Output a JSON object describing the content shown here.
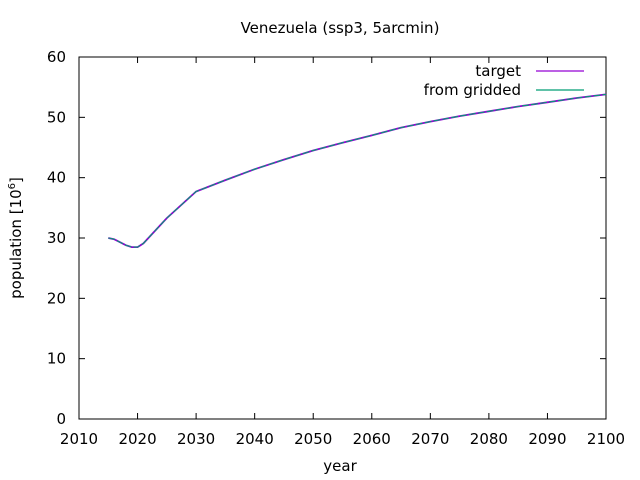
{
  "chart_data": {
    "type": "line",
    "title": "Venezuela (ssp3, 5arcmin)",
    "xlabel": "year",
    "ylabel_main": "population [10",
    "ylabel_exp": "6",
    "ylabel_close": "]",
    "xlim": [
      2010,
      2100
    ],
    "ylim": [
      0,
      60
    ],
    "xticks": [
      2010,
      2020,
      2030,
      2040,
      2050,
      2060,
      2070,
      2080,
      2090,
      2100
    ],
    "yticks": [
      0,
      10,
      20,
      30,
      40,
      50,
      60
    ],
    "grid": false,
    "legend_position": "top-right",
    "series": [
      {
        "name": "target",
        "color": "#9400d3",
        "x": [
          2015,
          2016,
          2017,
          2018,
          2019,
          2020,
          2021,
          2025,
          2030,
          2035,
          2040,
          2045,
          2050,
          2055,
          2060,
          2065,
          2070,
          2075,
          2080,
          2085,
          2090,
          2095,
          2100
        ],
        "y": [
          30.0,
          29.8,
          29.3,
          28.8,
          28.5,
          28.5,
          29.1,
          33.3,
          37.7,
          39.6,
          41.4,
          43.0,
          44.5,
          45.8,
          47.0,
          48.3,
          49.3,
          50.2,
          51.0,
          51.8,
          52.5,
          53.2,
          53.8
        ]
      },
      {
        "name": "from gridded",
        "color": "#009e73",
        "x": [
          2015,
          2016,
          2017,
          2018,
          2019,
          2020,
          2021,
          2025,
          2030,
          2035,
          2040,
          2045,
          2050,
          2055,
          2060,
          2065,
          2070,
          2075,
          2080,
          2085,
          2090,
          2095,
          2100
        ],
        "y": [
          30.0,
          29.8,
          29.3,
          28.8,
          28.5,
          28.5,
          29.1,
          33.3,
          37.7,
          39.6,
          41.4,
          43.0,
          44.5,
          45.8,
          47.0,
          48.3,
          49.3,
          50.2,
          51.0,
          51.8,
          52.5,
          53.2,
          53.8
        ]
      }
    ]
  }
}
